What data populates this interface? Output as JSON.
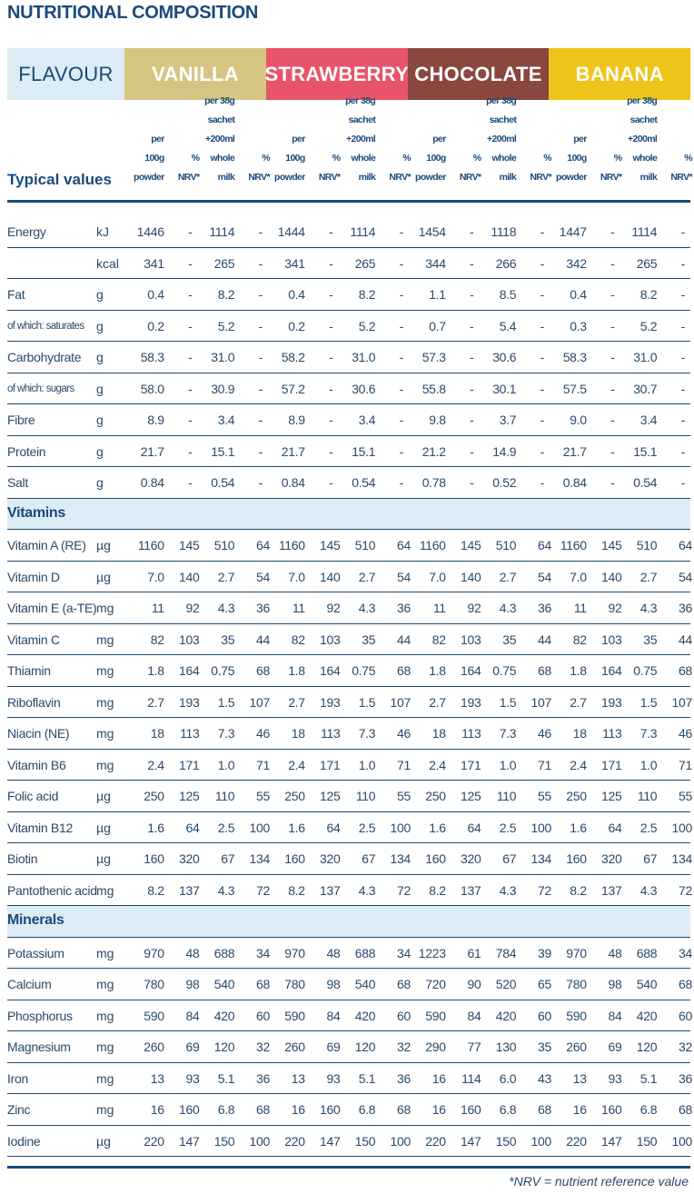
{
  "title": "NUTRITIONAL COMPOSITION",
  "flavour_label": "FLAVOUR",
  "flavours": [
    {
      "name": "VANILLA",
      "color": "#d6c482"
    },
    {
      "name": "STRAWBERRY",
      "color": "#e8546a"
    },
    {
      "name": "CHOCOLATE",
      "color": "#8a4740"
    },
    {
      "name": "BANANA",
      "color": "#eec41a"
    }
  ],
  "typical_values_label": "Typical values",
  "column_headers": [
    "per 100g powder",
    "% NRV*",
    "per 38g sachet +200ml whole milk",
    "% NRV*"
  ],
  "column_header_lines": [
    [
      "per",
      "100g",
      "powder"
    ],
    [
      "%",
      "NRV*"
    ],
    [
      "per 38g",
      "sachet",
      "+200ml",
      "whole milk"
    ],
    [
      "%",
      "NRV*"
    ]
  ],
  "rows": [
    {
      "label": "Energy",
      "unit": "kJ",
      "values": [
        "1446",
        "-",
        "1114",
        "-",
        "1444",
        "-",
        "1114",
        "-",
        "1454",
        "-",
        "1118",
        "-",
        "1447",
        "-",
        "1114",
        "-"
      ]
    },
    {
      "label": "",
      "unit": "kcal",
      "values": [
        "341",
        "-",
        "265",
        "-",
        "341",
        "-",
        "265",
        "-",
        "344",
        "-",
        "266",
        "-",
        "342",
        "-",
        "265",
        "-"
      ]
    },
    {
      "label": "Fat",
      "unit": "g",
      "values": [
        "0.4",
        "-",
        "8.2",
        "-",
        "0.4",
        "-",
        "8.2",
        "-",
        "1.1",
        "-",
        "8.5",
        "-",
        "0.4",
        "-",
        "8.2",
        "-"
      ]
    },
    {
      "label": "of which: saturates",
      "unit": "g",
      "small": true,
      "values": [
        "0.2",
        "-",
        "5.2",
        "-",
        "0.2",
        "-",
        "5.2",
        "-",
        "0.7",
        "-",
        "5.4",
        "-",
        "0.3",
        "-",
        "5.2",
        "-"
      ]
    },
    {
      "label": "Carbohydrate",
      "unit": "g",
      "values": [
        "58.3",
        "-",
        "31.0",
        "-",
        "58.2",
        "-",
        "31.0",
        "-",
        "57.3",
        "-",
        "30.6",
        "-",
        "58.3",
        "-",
        "31.0",
        "-"
      ]
    },
    {
      "label": "of which: sugars",
      "unit": "g",
      "small": true,
      "values": [
        "58.0",
        "-",
        "30.9",
        "-",
        "57.2",
        "-",
        "30.6",
        "-",
        "55.8",
        "-",
        "30.1",
        "-",
        "57.5",
        "-",
        "30.7",
        "-"
      ]
    },
    {
      "label": "Fibre",
      "unit": "g",
      "values": [
        "8.9",
        "-",
        "3.4",
        "-",
        "8.9",
        "-",
        "3.4",
        "-",
        "9.8",
        "-",
        "3.7",
        "-",
        "9.0",
        "-",
        "3.4",
        "-"
      ]
    },
    {
      "label": "Protein",
      "unit": "g",
      "values": [
        "21.7",
        "-",
        "15.1",
        "-",
        "21.7",
        "-",
        "15.1",
        "-",
        "21.2",
        "-",
        "14.9",
        "-",
        "21.7",
        "-",
        "15.1",
        "-"
      ]
    },
    {
      "label": "Salt",
      "unit": "g",
      "values": [
        "0.84",
        "-",
        "0.54",
        "-",
        "0.84",
        "-",
        "0.54",
        "-",
        "0.78",
        "-",
        "0.52",
        "-",
        "0.84",
        "-",
        "0.54",
        "-"
      ]
    },
    {
      "section": "Vitamins"
    },
    {
      "label": "Vitamin A (RE)",
      "unit": "µg",
      "values": [
        "1160",
        "145",
        "510",
        "64",
        "1160",
        "145",
        "510",
        "64",
        "1160",
        "145",
        "510",
        "64",
        "1160",
        "145",
        "510",
        "64"
      ]
    },
    {
      "label": "Vitamin D",
      "unit": "µg",
      "values": [
        "7.0",
        "140",
        "2.7",
        "54",
        "7.0",
        "140",
        "2.7",
        "54",
        "7.0",
        "140",
        "2.7",
        "54",
        "7.0",
        "140",
        "2.7",
        "54"
      ]
    },
    {
      "label": "Vitamin E (a-TE)",
      "unit": "mg",
      "values": [
        "11",
        "92",
        "4.3",
        "36",
        "11",
        "92",
        "4.3",
        "36",
        "11",
        "92",
        "4.3",
        "36",
        "11",
        "92",
        "4.3",
        "36"
      ]
    },
    {
      "label": "Vitamin C",
      "unit": "mg",
      "values": [
        "82",
        "103",
        "35",
        "44",
        "82",
        "103",
        "35",
        "44",
        "82",
        "103",
        "35",
        "44",
        "82",
        "103",
        "35",
        "44"
      ]
    },
    {
      "label": "Thiamin",
      "unit": "mg",
      "values": [
        "1.8",
        "164",
        "0.75",
        "68",
        "1.8",
        "164",
        "0.75",
        "68",
        "1.8",
        "164",
        "0.75",
        "68",
        "1.8",
        "164",
        "0.75",
        "68"
      ]
    },
    {
      "label": "Riboflavin",
      "unit": "mg",
      "values": [
        "2.7",
        "193",
        "1.5",
        "107",
        "2.7",
        "193",
        "1.5",
        "107",
        "2.7",
        "193",
        "1.5",
        "107",
        "2.7",
        "193",
        "1.5",
        "107"
      ]
    },
    {
      "label": "Niacin (NE)",
      "unit": "mg",
      "values": [
        "18",
        "113",
        "7.3",
        "46",
        "18",
        "113",
        "7.3",
        "46",
        "18",
        "113",
        "7.3",
        "46",
        "18",
        "113",
        "7.3",
        "46"
      ]
    },
    {
      "label": "Vitamin B6",
      "unit": "mg",
      "values": [
        "2.4",
        "171",
        "1.0",
        "71",
        "2.4",
        "171",
        "1.0",
        "71",
        "2.4",
        "171",
        "1.0",
        "71",
        "2.4",
        "171",
        "1.0",
        "71"
      ]
    },
    {
      "label": "Folic acid",
      "unit": "µg",
      "values": [
        "250",
        "125",
        "110",
        "55",
        "250",
        "125",
        "110",
        "55",
        "250",
        "125",
        "110",
        "55",
        "250",
        "125",
        "110",
        "55"
      ]
    },
    {
      "label": "Vitamin B12",
      "unit": "µg",
      "values": [
        "1.6",
        "64",
        "2.5",
        "100",
        "1.6",
        "64",
        "2.5",
        "100",
        "1.6",
        "64",
        "2.5",
        "100",
        "1.6",
        "64",
        "2.5",
        "100"
      ]
    },
    {
      "label": "Biotin",
      "unit": "µg",
      "values": [
        "160",
        "320",
        "67",
        "134",
        "160",
        "320",
        "67",
        "134",
        "160",
        "320",
        "67",
        "134",
        "160",
        "320",
        "67",
        "134"
      ]
    },
    {
      "label": "Pantothenic acid",
      "unit": "mg",
      "values": [
        "8.2",
        "137",
        "4.3",
        "72",
        "8.2",
        "137",
        "4.3",
        "72",
        "8.2",
        "137",
        "4.3",
        "72",
        "8.2",
        "137",
        "4.3",
        "72"
      ]
    },
    {
      "section": "Minerals"
    },
    {
      "label": "Potassium",
      "unit": "mg",
      "values": [
        "970",
        "48",
        "688",
        "34",
        "970",
        "48",
        "688",
        "34",
        "1223",
        "61",
        "784",
        "39",
        "970",
        "48",
        "688",
        "34"
      ]
    },
    {
      "label": "Calcium",
      "unit": "mg",
      "values": [
        "780",
        "98",
        "540",
        "68",
        "780",
        "98",
        "540",
        "68",
        "720",
        "90",
        "520",
        "65",
        "780",
        "98",
        "540",
        "68"
      ]
    },
    {
      "label": "Phosphorus",
      "unit": "mg",
      "values": [
        "590",
        "84",
        "420",
        "60",
        "590",
        "84",
        "420",
        "60",
        "590",
        "84",
        "420",
        "60",
        "590",
        "84",
        "420",
        "60"
      ]
    },
    {
      "label": "Magnesium",
      "unit": "mg",
      "values": [
        "260",
        "69",
        "120",
        "32",
        "260",
        "69",
        "120",
        "32",
        "290",
        "77",
        "130",
        "35",
        "260",
        "69",
        "120",
        "32"
      ]
    },
    {
      "label": "Iron",
      "unit": "mg",
      "values": [
        "13",
        "93",
        "5.1",
        "36",
        "13",
        "93",
        "5.1",
        "36",
        "16",
        "114",
        "6.0",
        "43",
        "13",
        "93",
        "5.1",
        "36"
      ]
    },
    {
      "label": "Zinc",
      "unit": "mg",
      "values": [
        "16",
        "160",
        "6.8",
        "68",
        "16",
        "160",
        "6.8",
        "68",
        "16",
        "160",
        "6.8",
        "68",
        "16",
        "160",
        "6.8",
        "68"
      ]
    },
    {
      "label": "Iodine",
      "unit": "µg",
      "values": [
        "220",
        "147",
        "150",
        "100",
        "220",
        "147",
        "150",
        "100",
        "220",
        "147",
        "150",
        "100",
        "220",
        "147",
        "150",
        "100"
      ]
    }
  ],
  "footnote": "*NRV = nutrient reference value"
}
